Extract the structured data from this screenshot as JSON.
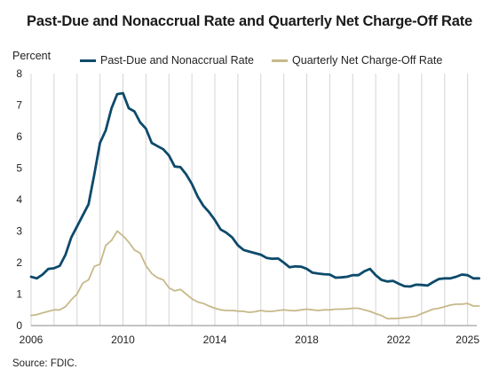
{
  "chart_data": {
    "type": "line",
    "title": "Past-Due and Nonaccrual Rate and Quarterly Net Charge-Off Rate",
    "y_unit": "Percent",
    "ylim": [
      0,
      8
    ],
    "yticks": [
      "0",
      "1",
      "2",
      "3",
      "4",
      "5",
      "6",
      "7",
      "8"
    ],
    "xlim": [
      2006,
      2025.4
    ],
    "xticks": [
      {
        "value": 2006,
        "label": "2006"
      },
      {
        "value": 2010,
        "label": "2010"
      },
      {
        "value": 2014,
        "label": "2014"
      },
      {
        "value": 2018,
        "label": "2018"
      },
      {
        "value": 2022,
        "label": "2022"
      },
      {
        "value": 2025,
        "label": "2025"
      }
    ],
    "grid": "vertical",
    "legend_position": "top",
    "source": "Source: FDIC.",
    "series": [
      {
        "name": "Past-Due and Nonaccrual Rate",
        "color": "#0d4a6b",
        "values": [
          1.55,
          1.5,
          1.62,
          1.8,
          1.82,
          1.9,
          2.25,
          2.8,
          3.15,
          3.5,
          3.85,
          4.8,
          5.8,
          6.2,
          6.9,
          7.35,
          7.38,
          6.9,
          6.8,
          6.45,
          6.25,
          5.8,
          5.7,
          5.6,
          5.4,
          5.05,
          5.03,
          4.8,
          4.5,
          4.1,
          3.8,
          3.6,
          3.35,
          3.05,
          2.95,
          2.8,
          2.55,
          2.4,
          2.35,
          2.3,
          2.25,
          2.15,
          2.12,
          2.13,
          2.0,
          1.85,
          1.88,
          1.87,
          1.8,
          1.68,
          1.65,
          1.63,
          1.62,
          1.52,
          1.53,
          1.55,
          1.6,
          1.6,
          1.72,
          1.8,
          1.6,
          1.45,
          1.4,
          1.42,
          1.33,
          1.25,
          1.24,
          1.3,
          1.29,
          1.27,
          1.38,
          1.48,
          1.5,
          1.5,
          1.55,
          1.62,
          1.6,
          1.5,
          1.5
        ]
      },
      {
        "name": "Quarterly Net Charge-Off Rate",
        "color": "#c7b98a",
        "values": [
          0.32,
          0.35,
          0.4,
          0.45,
          0.5,
          0.5,
          0.6,
          0.82,
          1.0,
          1.35,
          1.45,
          1.88,
          1.95,
          2.55,
          2.7,
          3.0,
          2.85,
          2.65,
          2.4,
          2.3,
          1.9,
          1.65,
          1.52,
          1.45,
          1.2,
          1.1,
          1.15,
          1.0,
          0.85,
          0.75,
          0.7,
          0.62,
          0.55,
          0.5,
          0.48,
          0.48,
          0.46,
          0.45,
          0.42,
          0.44,
          0.48,
          0.45,
          0.45,
          0.48,
          0.5,
          0.48,
          0.47,
          0.5,
          0.52,
          0.5,
          0.48,
          0.5,
          0.5,
          0.52,
          0.52,
          0.53,
          0.55,
          0.55,
          0.5,
          0.45,
          0.38,
          0.32,
          0.22,
          0.22,
          0.23,
          0.25,
          0.27,
          0.3,
          0.38,
          0.45,
          0.52,
          0.55,
          0.6,
          0.65,
          0.68,
          0.68,
          0.7,
          0.62,
          0.62
        ]
      }
    ],
    "x_start": 2006.0,
    "x_step": 0.25
  }
}
